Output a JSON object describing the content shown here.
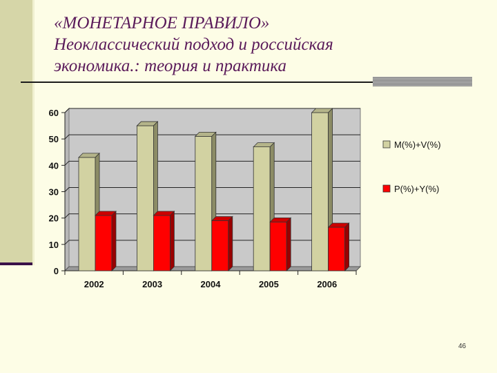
{
  "title_lines": [
    "«МОНЕТАРНОЕ ПРАВИЛО»",
    "Неоклассический подход и российская",
    "экономика.: теория и практика"
  ],
  "page_number": "46",
  "colors": {
    "background": "#fdfde6",
    "plot_area": "#c9c9c9",
    "series_1": "#d2d2a2",
    "series_2": "#ff0000"
  },
  "chart_data": {
    "type": "bar",
    "style": "3d-clustered-column",
    "categories": [
      "2002",
      "2003",
      "2004",
      "2005",
      "2006"
    ],
    "series": [
      {
        "name": "M(%)+V(%)",
        "values": [
          43,
          55,
          51,
          47,
          60
        ]
      },
      {
        "name": "P(%)+Y(%)",
        "values": [
          21,
          21,
          19,
          18.5,
          16.5
        ]
      }
    ],
    "ylim": [
      0,
      60
    ],
    "yticks": [
      0,
      10,
      20,
      30,
      40,
      50,
      60
    ],
    "grid": true,
    "legend": "right"
  }
}
